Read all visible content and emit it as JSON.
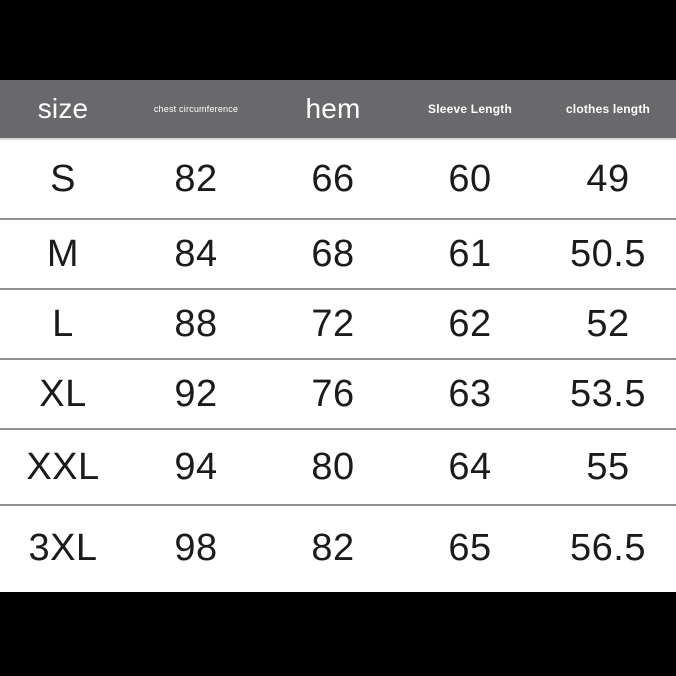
{
  "colors": {
    "page_band": "#000000",
    "header_background": "#69696c",
    "header_text": "#ffffff",
    "row_divider": "#8f8f8f",
    "cell_text": "#1b1b1b",
    "sheet_background": "#ffffff"
  },
  "header": {
    "columns": [
      {
        "label": "size",
        "style": "large"
      },
      {
        "label": "chest circumference",
        "style": "tiny"
      },
      {
        "label": "hem",
        "style": "large"
      },
      {
        "label": "Sleeve Length",
        "style": "small"
      },
      {
        "label": "clothes length",
        "style": "small"
      }
    ]
  },
  "chart_data": {
    "type": "table",
    "columns": [
      "size",
      "chest circumference",
      "hem",
      "Sleeve Length",
      "clothes length"
    ],
    "rows": [
      [
        "S",
        "82",
        "66",
        "60",
        "49"
      ],
      [
        "M",
        "84",
        "68",
        "61",
        "50.5"
      ],
      [
        "L",
        "88",
        "72",
        "62",
        "52"
      ],
      [
        "XL",
        "92",
        "76",
        "63",
        "53.5"
      ],
      [
        "XXL",
        "94",
        "80",
        "64",
        "55"
      ],
      [
        "3XL",
        "98",
        "82",
        "65",
        "56.5"
      ]
    ]
  }
}
